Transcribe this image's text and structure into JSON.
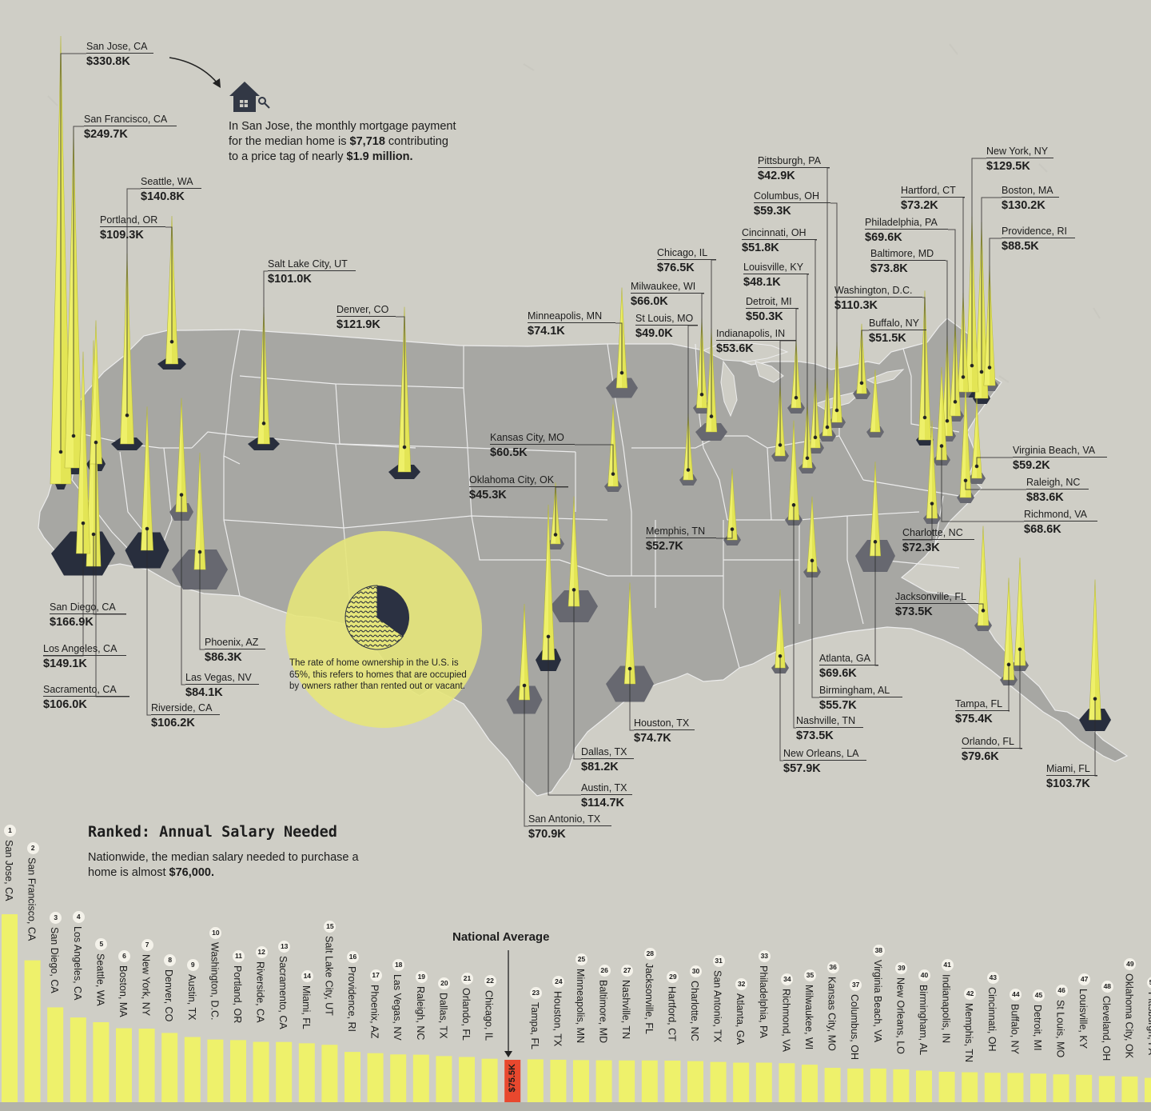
{
  "callout": {
    "line1": "In San Jose, the monthly mortgage payment",
    "line2_pre": "for the median home is ",
    "line2_bold": "$7,718",
    "line2_post": " contributing",
    "line3_pre": "to a price tag of nearly ",
    "line3_bold": "$1.9 million."
  },
  "ownership": {
    "text": "The rate of home ownership in the U.S. is 65%, this refers to homes that are occupied by owners rather than rented out or vacant.",
    "rate_percent": 65
  },
  "ranked": {
    "title": "Ranked: Annual Salary Needed",
    "subtitle_pre": "Nationwide, the median salary needed to purchase a home is almost ",
    "subtitle_bold": "$76,000."
  },
  "colors": {
    "background": "#cfcec6",
    "land": "#a6a6a2",
    "spike": "#eef06a",
    "footprint": "#282e3d",
    "highlight": "#e8482e",
    "circle": "#e7e77c"
  },
  "icons": {
    "house": "house-icon",
    "arrow": "arrow-icon"
  },
  "chart_data": {
    "type": "bar",
    "title": "Ranked: Annual Salary Needed",
    "national_average": {
      "label": "National Average",
      "value_label": "$75.5K",
      "value": 75.5
    },
    "cities": [
      {
        "name": "San Jose, CA",
        "value": 330.8,
        "label": "$330.8K"
      },
      {
        "name": "San Francisco, CA",
        "value": 249.7,
        "label": "$249.7K"
      },
      {
        "name": "San Diego, CA",
        "value": 166.9,
        "label": "$166.9K"
      },
      {
        "name": "Los Angeles, CA",
        "value": 149.1,
        "label": "$149.1K"
      },
      {
        "name": "Seattle, WA",
        "value": 140.8,
        "label": "$140.8K"
      },
      {
        "name": "Boston, MA",
        "value": 130.2,
        "label": "$130.2K"
      },
      {
        "name": "New York, NY",
        "value": 129.5,
        "label": "$129.5K"
      },
      {
        "name": "Denver, CO",
        "value": 121.9,
        "label": "$121.9K"
      },
      {
        "name": "Austin, TX",
        "value": 114.7,
        "label": "$114.7K"
      },
      {
        "name": "Washington, D.C.",
        "value": 110.3,
        "label": "$110.3K"
      },
      {
        "name": "Portland, OR",
        "value": 109.3,
        "label": "$109.3K"
      },
      {
        "name": "Riverside, CA",
        "value": 106.2,
        "label": "$106.2K"
      },
      {
        "name": "Sacramento, CA",
        "value": 106.0,
        "label": "$106.0K"
      },
      {
        "name": "Miami, FL",
        "value": 103.7,
        "label": "$103.7K"
      },
      {
        "name": "Salt Lake City, UT",
        "value": 101.0,
        "label": "$101.0K"
      },
      {
        "name": "Providence, RI",
        "value": 88.5,
        "label": "$88.5K"
      },
      {
        "name": "Phoenix, AZ",
        "value": 86.3,
        "label": "$86.3K"
      },
      {
        "name": "Las Vegas, NV",
        "value": 84.1,
        "label": "$84.1K"
      },
      {
        "name": "Raleigh, NC",
        "value": 83.6,
        "label": "$83.6K"
      },
      {
        "name": "Dallas, TX",
        "value": 81.2,
        "label": "$81.2K"
      },
      {
        "name": "Orlando, FL",
        "value": 79.6,
        "label": "$79.6K"
      },
      {
        "name": "Chicago, IL",
        "value": 76.5,
        "label": "$76.5K"
      },
      {
        "name": "Tampa, FL",
        "value": 75.4,
        "label": "$75.4K"
      },
      {
        "name": "Houston, TX",
        "value": 74.7,
        "label": "$74.7K"
      },
      {
        "name": "Minneapolis, MN",
        "value": 74.1,
        "label": "$74.1K"
      },
      {
        "name": "Baltimore, MD",
        "value": 73.8,
        "label": "$73.8K"
      },
      {
        "name": "Nashville, TN",
        "value": 73.5,
        "label": "$73.5K"
      },
      {
        "name": "Jacksonville, FL",
        "value": 73.5,
        "label": "$73.5K"
      },
      {
        "name": "Hartford, CT",
        "value": 73.2,
        "label": "$73.2K"
      },
      {
        "name": "Charlotte, NC",
        "value": 72.3,
        "label": "$72.3K"
      },
      {
        "name": "San Antonio, TX",
        "value": 70.9,
        "label": "$70.9K"
      },
      {
        "name": "Atlanta, GA",
        "value": 69.6,
        "label": "$69.6K"
      },
      {
        "name": "Philadelphia, PA",
        "value": 69.6,
        "label": "$69.6K"
      },
      {
        "name": "Richmond, VA",
        "value": 68.6,
        "label": "$68.6K"
      },
      {
        "name": "Milwaukee, WI",
        "value": 66.0,
        "label": "$66.0K"
      },
      {
        "name": "Kansas City, MO",
        "value": 60.5,
        "label": "$60.5K"
      },
      {
        "name": "Columbus, OH",
        "value": 59.3,
        "label": "$59.3K"
      },
      {
        "name": "Virginia Beach, VA",
        "value": 59.2,
        "label": "$59.2K"
      },
      {
        "name": "New Orleans, LO",
        "map_name": "New Orleans, LA",
        "value": 57.9,
        "label": "$57.9K"
      },
      {
        "name": "Birmingham, AL",
        "value": 55.7,
        "label": "$55.7K"
      },
      {
        "name": "Indianapolis, IN",
        "value": 53.6,
        "label": "$53.6K"
      },
      {
        "name": "Memphis, TN",
        "value": 52.7,
        "label": "$52.7K"
      },
      {
        "name": "Cincinnati, OH",
        "value": 51.8,
        "label": "$51.8K"
      },
      {
        "name": "Buffalo, NY",
        "value": 51.5,
        "label": "$51.5K"
      },
      {
        "name": "Detroit, MI",
        "value": 50.3,
        "label": "$50.3K"
      },
      {
        "name": "St Louis, MO",
        "value": 49.0,
        "label": "$49.0K"
      },
      {
        "name": "Louisville, KY",
        "value": 48.1,
        "label": "$48.1K"
      },
      {
        "name": "Cleveland, OH",
        "value": 46.0,
        "label": ""
      },
      {
        "name": "Oklahoma City, OK",
        "value": 45.3,
        "label": "$45.3K"
      },
      {
        "name": "Pittsburgh, PA",
        "value": 42.9,
        "label": "$42.9K"
      }
    ]
  }
}
